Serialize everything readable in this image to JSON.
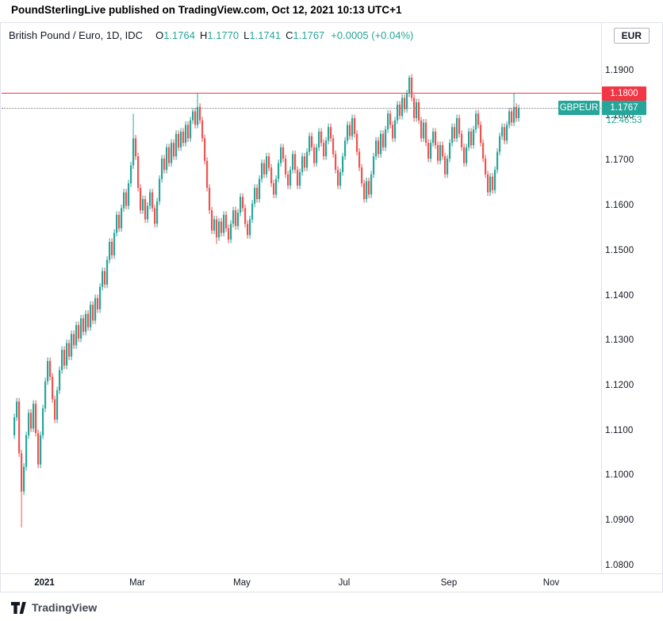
{
  "header": {
    "title": "PoundSterlingLive published on TradingView.com, Oct 12, 2021 10:13 UTC+1"
  },
  "legend": {
    "symbol_title": "British Pound / Euro, 1D, IDC",
    "o_label": "O",
    "o_value": "1.1764",
    "h_label": "H",
    "h_value": "1.1770",
    "l_label": "L",
    "l_value": "1.1741",
    "c_label": "C",
    "c_value": "1.1767",
    "change": "+0.0005 (+0.04%)"
  },
  "axis": {
    "currency": "EUR",
    "y_ticks": [
      "1.1900",
      "1.1800",
      "1.1700",
      "1.1600",
      "1.1500",
      "1.1400",
      "1.1300",
      "1.1200",
      "1.1100",
      "1.1000",
      "1.0900",
      "1.0800"
    ],
    "x_ticks": [
      "2021",
      "Mar",
      "May",
      "Jul",
      "Sep",
      "Nov"
    ]
  },
  "labels": {
    "resistance_price": "1.1800",
    "symbol_tag": "GBPEUR",
    "last_price": "1.1767",
    "countdown": "12:46:53"
  },
  "footer": {
    "brand": "TradingView"
  },
  "colors": {
    "up": "#26a69a",
    "down": "#ef5350",
    "resistance": "#f23645",
    "last_label": "#26a69a"
  },
  "chart_data": {
    "type": "candlestick",
    "title": "British Pound / Euro, 1D, IDC (GBPEUR)",
    "symbol": "GBPEUR",
    "timeframe": "1D",
    "exchange": "IDC",
    "x_range": [
      "Dec 2020",
      "Oct 12, 2021"
    ],
    "x_tick_labels": [
      "2021",
      "Mar",
      "May",
      "Jul",
      "Sep",
      "Nov"
    ],
    "y_axis_ticks": [
      1.19,
      1.18,
      1.17,
      1.16,
      1.15,
      1.14,
      1.13,
      1.12,
      1.11,
      1.1,
      1.09,
      1.08
    ],
    "ylim": [
      1.0755,
      1.1915
    ],
    "grid": false,
    "levels": {
      "resistance": 1.18,
      "last": 1.1767
    },
    "last_candle_ohlc": {
      "open": 1.1764,
      "high": 1.177,
      "low": 1.1741,
      "close": 1.1767,
      "change": "+0.0005 (+0.04%)"
    },
    "first_open": 1.104,
    "default_wick": 0.0008,
    "closes": [
      1.108,
      1.1115,
      1.1,
      1.0915,
      1.097,
      1.104,
      1.109,
      1.1055,
      1.111,
      1.1045,
      1.0975,
      1.104,
      1.11,
      1.116,
      1.1205,
      1.117,
      1.112,
      1.1075,
      1.114,
      1.1185,
      1.123,
      1.1195,
      1.1245,
      1.1215,
      1.1265,
      1.124,
      1.1285,
      1.1255,
      1.13,
      1.127,
      1.131,
      1.128,
      1.133,
      1.1295,
      1.1345,
      1.132,
      1.137,
      1.1405,
      1.1375,
      1.143,
      1.147,
      1.144,
      1.149,
      1.153,
      1.15,
      1.1545,
      1.158,
      1.155,
      1.16,
      1.164,
      1.17,
      1.166,
      1.159,
      1.154,
      1.1565,
      1.152,
      1.155,
      1.158,
      1.1545,
      1.151,
      1.156,
      1.161,
      1.1655,
      1.163,
      1.168,
      1.1645,
      1.169,
      1.166,
      1.171,
      1.168,
      1.1715,
      1.169,
      1.173,
      1.17,
      1.174,
      1.176,
      1.173,
      1.177,
      1.174,
      1.17,
      1.165,
      1.159,
      1.154,
      1.1495,
      1.152,
      1.148,
      1.1515,
      1.149,
      1.153,
      1.15,
      1.1475,
      1.151,
      1.154,
      1.1505,
      1.1535,
      1.157,
      1.1545,
      1.151,
      1.1485,
      1.152,
      1.1555,
      1.159,
      1.1565,
      1.161,
      1.1645,
      1.162,
      1.166,
      1.1635,
      1.16,
      1.1575,
      1.161,
      1.1645,
      1.168,
      1.1655,
      1.162,
      1.1595,
      1.163,
      1.1665,
      1.163,
      1.1595,
      1.1625,
      1.166,
      1.1635,
      1.167,
      1.1705,
      1.168,
      1.1645,
      1.168,
      1.1715,
      1.169,
      1.166,
      1.1695,
      1.1725,
      1.17,
      1.1665,
      1.163,
      1.1595,
      1.1625,
      1.166,
      1.1695,
      1.173,
      1.1705,
      1.1745,
      1.171,
      1.167,
      1.1635,
      1.16,
      1.1565,
      1.1605,
      1.1575,
      1.162,
      1.166,
      1.1695,
      1.1665,
      1.171,
      1.168,
      1.172,
      1.1755,
      1.173,
      1.17,
      1.174,
      1.1775,
      1.175,
      1.179,
      1.1765,
      1.18,
      1.1835,
      1.179,
      1.1745,
      1.178,
      1.174,
      1.17,
      1.1735,
      1.169,
      1.1655,
      1.169,
      1.1715,
      1.1685,
      1.165,
      1.1685,
      1.166,
      1.162,
      1.1655,
      1.169,
      1.1725,
      1.17,
      1.1745,
      1.171,
      1.168,
      1.1645,
      1.168,
      1.1715,
      1.1685,
      1.172,
      1.1755,
      1.173,
      1.169,
      1.1655,
      1.162,
      1.158,
      1.1615,
      1.1585,
      1.163,
      1.167,
      1.1705,
      1.1725,
      1.1695,
      1.173,
      1.176,
      1.1735,
      1.177,
      1.1745,
      1.1767
    ],
    "wick_overrides": {
      "3": {
        "low": 1.0835
      },
      "50": {
        "high": 1.1755
      },
      "77": {
        "high": 1.18
      },
      "85": {
        "low": 1.1465
      },
      "166": {
        "high": 1.184
      },
      "210": {
        "high": 1.18
      }
    }
  }
}
